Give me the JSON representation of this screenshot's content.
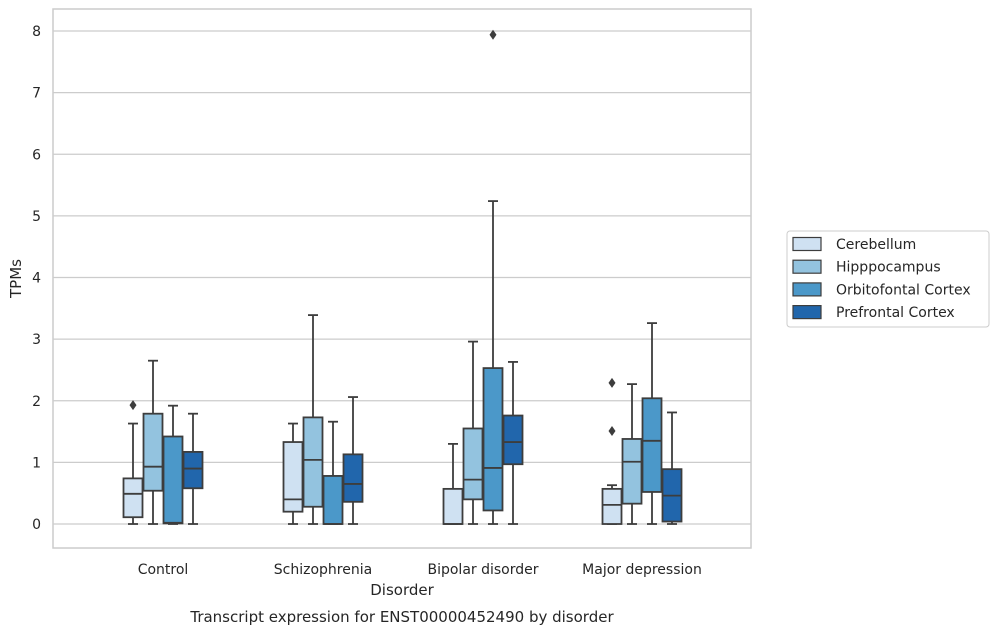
{
  "chart_data": {
    "type": "box",
    "xlabel": "Disorder",
    "ylabel": "TPMs",
    "caption": "Transcript expression for ENST00000452490 by disorder",
    "categories": [
      "Control",
      "Schizophrenia",
      "Bipolar disorder",
      "Major depression"
    ],
    "ylim": [
      -0.4,
      8.35
    ],
    "yticks": [
      "0",
      "1",
      "2",
      "3",
      "4",
      "5",
      "6",
      "7",
      "8"
    ],
    "grid": true,
    "legend_position": "right",
    "series": [
      {
        "name": "Cerebellum",
        "color": "#cfe1f2",
        "boxes": [
          {
            "whislo": 0.0,
            "q1": 0.11,
            "median": 0.49,
            "q3": 0.74,
            "whishi": 1.63,
            "fliers": [
              1.93
            ]
          },
          {
            "whislo": 0.0,
            "q1": 0.2,
            "median": 0.4,
            "q3": 1.33,
            "whishi": 1.63,
            "fliers": []
          },
          {
            "whislo": 0.0,
            "q1": 0.0,
            "median": 0.0,
            "q3": 0.57,
            "whishi": 1.3,
            "fliers": []
          },
          {
            "whislo": 0.0,
            "q1": 0.0,
            "median": 0.31,
            "q3": 0.57,
            "whishi": 0.63,
            "fliers": [
              1.51,
              2.29
            ]
          }
        ]
      },
      {
        "name": "Hipppocampus",
        "color": "#93c3df",
        "boxes": [
          {
            "whislo": 0.0,
            "q1": 0.54,
            "median": 0.93,
            "q3": 1.79,
            "whishi": 2.65,
            "fliers": []
          },
          {
            "whislo": 0.0,
            "q1": 0.28,
            "median": 1.04,
            "q3": 1.73,
            "whishi": 3.39,
            "fliers": []
          },
          {
            "whislo": 0.0,
            "q1": 0.4,
            "median": 0.72,
            "q3": 1.55,
            "whishi": 2.96,
            "fliers": []
          },
          {
            "whislo": 0.0,
            "q1": 0.33,
            "median": 1.01,
            "q3": 1.38,
            "whishi": 2.27,
            "fliers": []
          }
        ]
      },
      {
        "name": "Orbitofontal Cortex",
        "color": "#4b98c9",
        "boxes": [
          {
            "whislo": 0.0,
            "q1": 0.01,
            "median": 0.02,
            "q3": 1.42,
            "whishi": 1.92,
            "fliers": []
          },
          {
            "whislo": 0.0,
            "q1": 0.0,
            "median": 0.0,
            "q3": 0.78,
            "whishi": 1.66,
            "fliers": []
          },
          {
            "whislo": 0.0,
            "q1": 0.22,
            "median": 0.91,
            "q3": 2.53,
            "whishi": 5.24,
            "fliers": [
              7.94
            ]
          },
          {
            "whislo": 0.0,
            "q1": 0.52,
            "median": 1.35,
            "q3": 2.04,
            "whishi": 3.26,
            "fliers": []
          }
        ]
      },
      {
        "name": "Prefrontal Cortex",
        "color": "#2166ac",
        "boxes": [
          {
            "whislo": 0.0,
            "q1": 0.58,
            "median": 0.9,
            "q3": 1.17,
            "whishi": 1.79,
            "fliers": []
          },
          {
            "whislo": 0.0,
            "q1": 0.36,
            "median": 0.65,
            "q3": 1.13,
            "whishi": 2.06,
            "fliers": []
          },
          {
            "whislo": 0.0,
            "q1": 0.97,
            "median": 1.33,
            "q3": 1.76,
            "whishi": 2.63,
            "fliers": []
          },
          {
            "whislo": 0.0,
            "q1": 0.04,
            "median": 0.46,
            "q3": 0.89,
            "whishi": 1.81,
            "fliers": []
          }
        ]
      }
    ]
  }
}
